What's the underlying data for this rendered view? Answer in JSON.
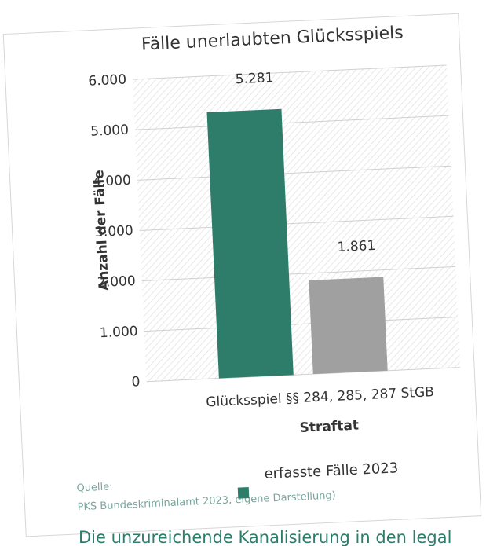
{
  "chart_data": {
    "type": "bar",
    "title": "Fälle unerlaubten Glücksspiels",
    "categories": [
      "Glücksspiel §§ 284, 285, 287 StGB"
    ],
    "series": [
      {
        "name": "erfasste Fälle 2023",
        "color": "#2e7d6b",
        "values": [
          5281
        ],
        "value_labels": [
          "5.281"
        ]
      },
      {
        "color": "#a0a0a0",
        "values": [
          1861
        ],
        "value_labels": [
          "1.861"
        ]
      }
    ],
    "ylabel": "Anzahl der Fälle",
    "xlabel": "Straftat",
    "ylim": [
      0,
      6000
    ],
    "yticks": [
      0,
      {
        "value": 1000,
        "label": "1.000"
      },
      {
        "value": 2000,
        "label": "2.000"
      },
      {
        "value": 3000,
        "label": "3.000"
      },
      {
        "value": 4000,
        "label": "4.000"
      },
      {
        "value": 5000,
        "label": "5.000"
      },
      {
        "value": 6000,
        "label": "6.000"
      }
    ],
    "grid": true,
    "source_label": "Quelle:",
    "source": "PKS Bundeskriminalamt 2023, eigene Darstellung)"
  },
  "caption_below": "Die unzureichende Kanalisierung in den legal"
}
